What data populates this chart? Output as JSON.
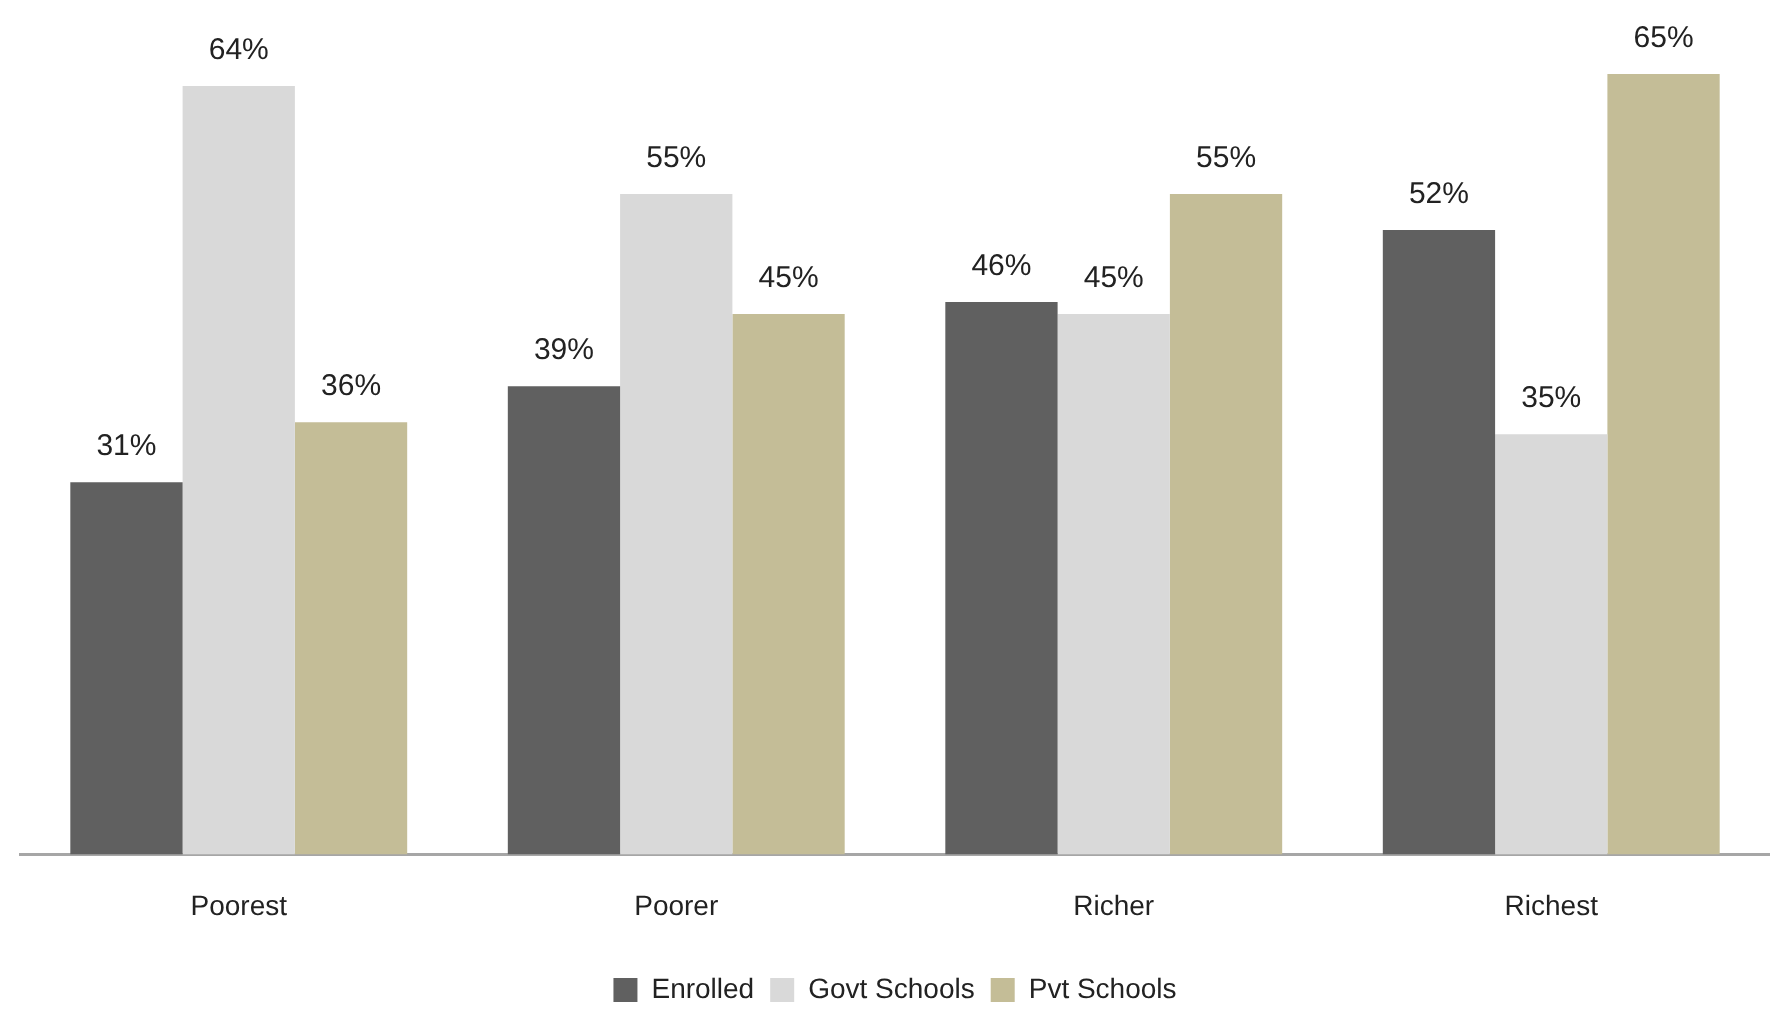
{
  "chart_data": {
    "type": "bar",
    "categories": [
      "Poorest",
      "Poorer",
      "Richer",
      "Richest"
    ],
    "series": [
      {
        "name": "Enrolled",
        "color": "#606060",
        "values": [
          31,
          39,
          46,
          52
        ],
        "value_labels": [
          "31%",
          "39%",
          "46%",
          "52%"
        ]
      },
      {
        "name": "Govt Schools",
        "color": "#d9d9d9",
        "values": [
          64,
          55,
          45,
          35
        ],
        "value_labels": [
          "64%",
          "55%",
          "45%",
          "35%"
        ]
      },
      {
        "name": "Pvt Schools",
        "color": "#c4bd97",
        "values": [
          36,
          45,
          55,
          65
        ],
        "value_labels": [
          "36%",
          "45%",
          "55%",
          "65%"
        ]
      }
    ],
    "ylim": [
      0,
      65
    ],
    "tick_labels": "x",
    "grid": false,
    "legend": "bottom"
  }
}
